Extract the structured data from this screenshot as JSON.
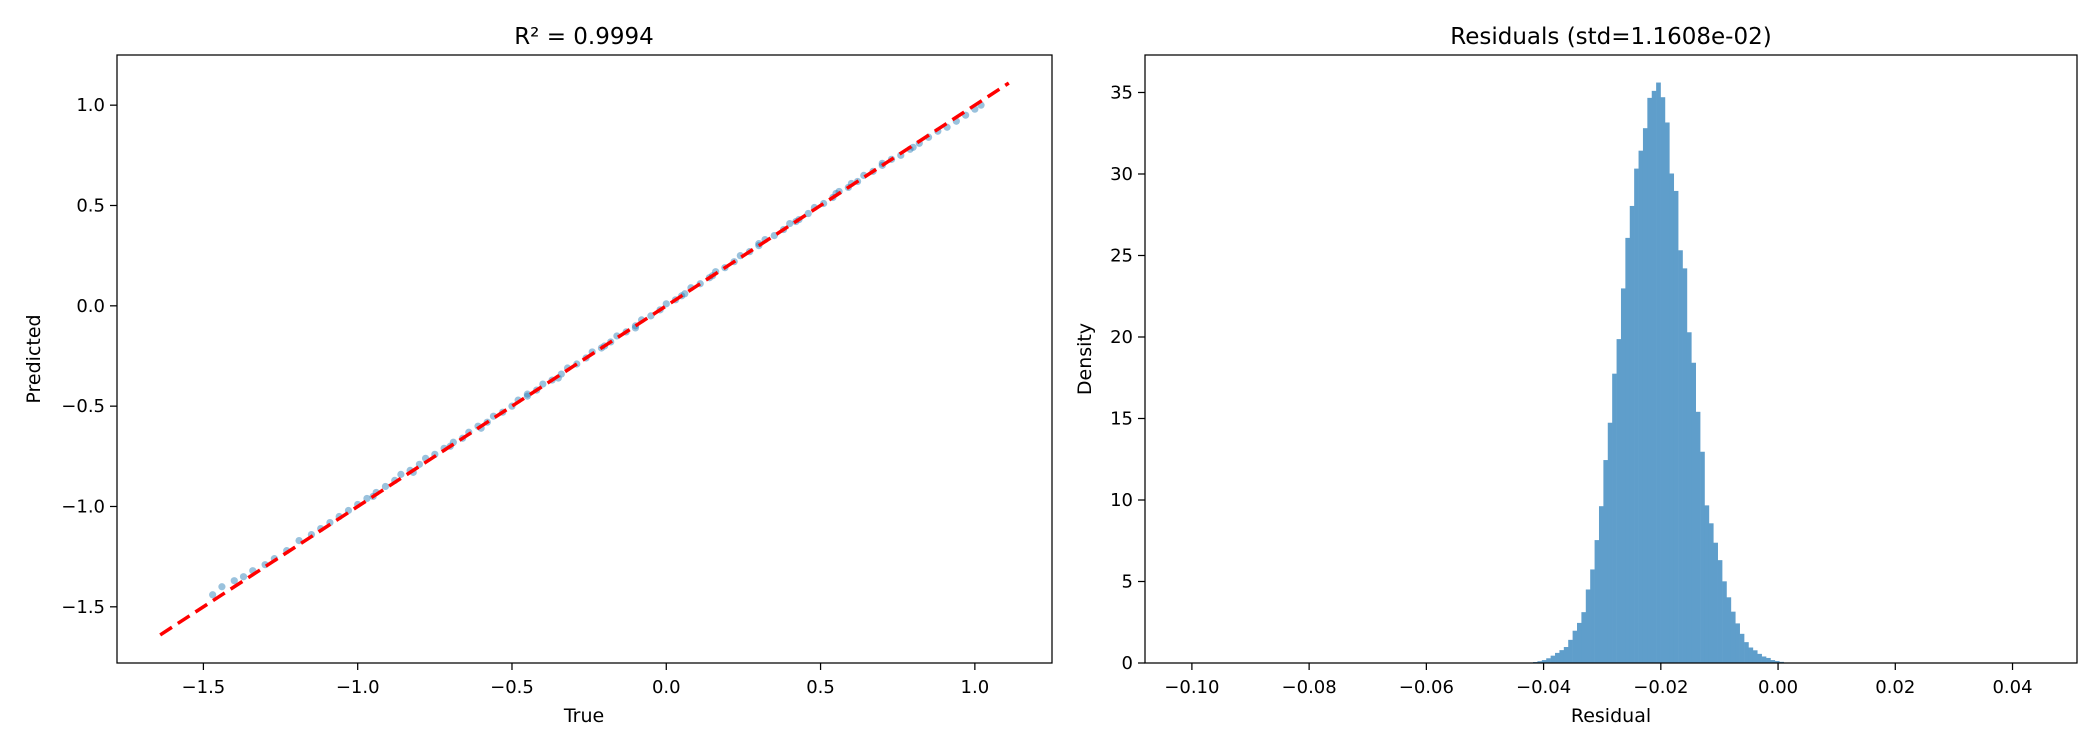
{
  "chart_data": [
    {
      "type": "scatter",
      "title": "R² = 0.9994",
      "xlabel": "True",
      "ylabel": "Predicted",
      "xlim": [
        -1.78,
        1.25
      ],
      "ylim": [
        -1.78,
        1.25
      ],
      "x_ticks": [
        -1.5,
        -1.0,
        -0.5,
        0.0,
        0.5,
        1.0
      ],
      "x_tick_labels": [
        "−1.5",
        "−1.0",
        "−0.5",
        "0.0",
        "0.5",
        "1.0"
      ],
      "y_ticks": [
        -1.5,
        -1.0,
        -0.5,
        0.0,
        0.5,
        1.0
      ],
      "y_tick_labels": [
        "−1.5",
        "−1.0",
        "−0.5",
        "0.0",
        "0.5",
        "1.0"
      ],
      "point_color": "#1f77b4",
      "line_color": "#ff0000",
      "reference_line": {
        "x": [
          -1.64,
          1.11
        ],
        "y": [
          -1.64,
          1.11
        ],
        "style": "dashed"
      },
      "points": [
        [
          -1.47,
          -1.44
        ],
        [
          -1.44,
          -1.4
        ],
        [
          -1.4,
          -1.37
        ],
        [
          -1.37,
          -1.35
        ],
        [
          -1.34,
          -1.32
        ],
        [
          -1.3,
          -1.29
        ],
        [
          -1.27,
          -1.26
        ],
        [
          -1.23,
          -1.22
        ],
        [
          -1.19,
          -1.17
        ],
        [
          -1.15,
          -1.14
        ],
        [
          -1.12,
          -1.11
        ],
        [
          -1.09,
          -1.08
        ],
        [
          -1.06,
          -1.05
        ],
        [
          -1.03,
          -1.02
        ],
        [
          -1.0,
          -0.99
        ],
        [
          -0.97,
          -0.96
        ],
        [
          -0.94,
          -0.93
        ],
        [
          -0.91,
          -0.9
        ],
        [
          -0.88,
          -0.87
        ],
        [
          -0.86,
          -0.84
        ],
        [
          -0.83,
          -0.82
        ],
        [
          -0.8,
          -0.79
        ],
        [
          -0.78,
          -0.76
        ],
        [
          -0.75,
          -0.74
        ],
        [
          -0.72,
          -0.71
        ],
        [
          -0.69,
          -0.68
        ],
        [
          -0.66,
          -0.66
        ],
        [
          -0.64,
          -0.63
        ],
        [
          -0.61,
          -0.6
        ],
        [
          -0.58,
          -0.58
        ],
        [
          -0.56,
          -0.55
        ],
        [
          -0.53,
          -0.53
        ],
        [
          -0.5,
          -0.5
        ],
        [
          -0.48,
          -0.47
        ],
        [
          -0.45,
          -0.45
        ],
        [
          -0.42,
          -0.42
        ],
        [
          -0.4,
          -0.39
        ],
        [
          -0.37,
          -0.37
        ],
        [
          -0.34,
          -0.34
        ],
        [
          -0.32,
          -0.31
        ],
        [
          -0.29,
          -0.29
        ],
        [
          -0.26,
          -0.26
        ],
        [
          -0.24,
          -0.23
        ],
        [
          -0.21,
          -0.21
        ],
        [
          -0.18,
          -0.18
        ],
        [
          -0.16,
          -0.15
        ],
        [
          -0.13,
          -0.13
        ],
        [
          -0.1,
          -0.1
        ],
        [
          -0.08,
          -0.07
        ],
        [
          -0.05,
          -0.05
        ],
        [
          -0.02,
          -0.02
        ],
        [
          0.0,
          0.01
        ],
        [
          0.03,
          0.03
        ],
        [
          0.06,
          0.06
        ],
        [
          0.08,
          0.09
        ],
        [
          0.11,
          0.11
        ],
        [
          0.14,
          0.14
        ],
        [
          0.16,
          0.17
        ],
        [
          0.19,
          0.19
        ],
        [
          0.22,
          0.22
        ],
        [
          0.24,
          0.25
        ],
        [
          0.27,
          0.27
        ],
        [
          0.3,
          0.3
        ],
        [
          0.32,
          0.33
        ],
        [
          0.35,
          0.35
        ],
        [
          0.38,
          0.38
        ],
        [
          0.4,
          0.41
        ],
        [
          0.43,
          0.43
        ],
        [
          0.46,
          0.46
        ],
        [
          0.48,
          0.49
        ],
        [
          0.51,
          0.51
        ],
        [
          0.54,
          0.54
        ],
        [
          0.56,
          0.57
        ],
        [
          0.59,
          0.59
        ],
        [
          0.62,
          0.62
        ],
        [
          0.64,
          0.65
        ],
        [
          0.67,
          0.67
        ],
        [
          0.7,
          0.7
        ],
        [
          0.73,
          0.73
        ],
        [
          0.76,
          0.75
        ],
        [
          0.79,
          0.78
        ],
        [
          0.82,
          0.81
        ],
        [
          0.85,
          0.84
        ],
        [
          0.88,
          0.87
        ],
        [
          0.91,
          0.89
        ],
        [
          0.94,
          0.92
        ],
        [
          0.97,
          0.95
        ],
        [
          1.0,
          0.98
        ],
        [
          1.02,
          1.0
        ],
        [
          -0.95,
          -0.95
        ],
        [
          -0.7,
          -0.7
        ],
        [
          -0.45,
          -0.44
        ],
        [
          -0.2,
          -0.2
        ],
        [
          0.05,
          0.05
        ],
        [
          0.3,
          0.31
        ],
        [
          0.55,
          0.56
        ],
        [
          0.8,
          0.79
        ],
        [
          -0.6,
          -0.61
        ],
        [
          -0.35,
          -0.36
        ],
        [
          -0.1,
          -0.11
        ],
        [
          0.15,
          0.15
        ],
        [
          0.42,
          0.42
        ],
        [
          0.6,
          0.61
        ],
        [
          -0.82,
          -0.83
        ],
        [
          0.7,
          0.71
        ]
      ]
    },
    {
      "type": "bar",
      "title": "Residuals (std=1.1608e-02)",
      "xlabel": "Residual",
      "ylabel": "Density",
      "xlim": [
        -0.108,
        0.051
      ],
      "ylim": [
        0,
        37.3
      ],
      "x_ticks": [
        -0.1,
        -0.08,
        -0.06,
        -0.04,
        -0.02,
        0.0,
        0.02,
        0.04
      ],
      "x_tick_labels": [
        "−0.10",
        "−0.08",
        "−0.06",
        "−0.04",
        "−0.02",
        "0.00",
        "0.02",
        "0.04"
      ],
      "y_ticks": [
        0,
        5,
        10,
        15,
        20,
        25,
        30,
        35
      ],
      "y_tick_labels": [
        "0",
        "5",
        "10",
        "15",
        "20",
        "25",
        "30",
        "35"
      ],
      "bar_color": "#5f9ecb",
      "bin_start": -0.0433,
      "bin_width": 0.00075,
      "values": [
        0.01,
        0.03,
        0.06,
        0.11,
        0.18,
        0.29,
        0.45,
        0.62,
        0.79,
        0.98,
        1.42,
        1.98,
        2.46,
        3.12,
        4.51,
        5.74,
        7.54,
        9.62,
        12.45,
        14.74,
        17.75,
        19.87,
        22.98,
        26.08,
        28.04,
        30.33,
        31.43,
        32.81,
        34.67,
        35.1,
        35.61,
        34.71,
        33.16,
        30.03,
        28.96,
        25.32,
        24.21,
        20.29,
        18.42,
        15.41,
        12.96,
        9.67,
        8.57,
        7.38,
        6.31,
        5.01,
        4.03,
        3.15,
        2.43,
        1.79,
        1.28,
        0.95,
        0.78,
        0.56,
        0.4,
        0.31,
        0.18,
        0.12,
        0.07
      ]
    }
  ]
}
